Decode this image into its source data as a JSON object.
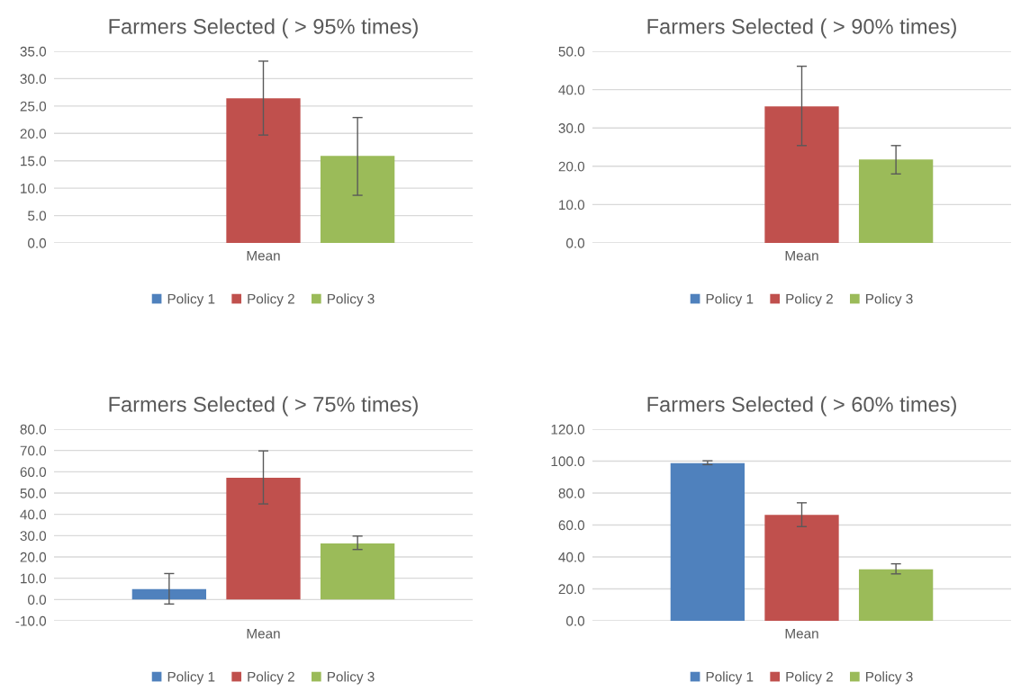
{
  "chart_data": [
    {
      "type": "bar",
      "title": "Farmers Selected ( > 95% times)",
      "categories": [
        "Mean"
      ],
      "ylim": [
        0,
        35
      ],
      "yticks": [
        {
          "value": 0,
          "label": "0.0"
        },
        {
          "value": 5,
          "label": "5.0"
        },
        {
          "value": 10,
          "label": "10.0"
        },
        {
          "value": 15,
          "label": "15.0"
        },
        {
          "value": 20,
          "label": "20.0"
        },
        {
          "value": 25,
          "label": "25.0"
        },
        {
          "value": 30,
          "label": "30.0"
        },
        {
          "value": 35,
          "label": "35.0"
        }
      ],
      "grid": "y",
      "legend": "bottom",
      "series": [
        {
          "name": "Policy 1",
          "color": "#4f81bd",
          "values": [
            null
          ],
          "errors": [
            null
          ]
        },
        {
          "name": "Policy 2",
          "color": "#c0504d",
          "values": [
            26.4
          ],
          "errors": [
            [
              19.7,
              33.2
            ]
          ]
        },
        {
          "name": "Policy 3",
          "color": "#9bbb59",
          "values": [
            15.9
          ],
          "errors": [
            [
              8.7,
              22.9
            ]
          ]
        }
      ]
    },
    {
      "type": "bar",
      "title": "Farmers Selected ( > 90% times)",
      "categories": [
        "Mean"
      ],
      "ylim": [
        0,
        50
      ],
      "yticks": [
        {
          "value": 0,
          "label": "0.0"
        },
        {
          "value": 10,
          "label": "10.0"
        },
        {
          "value": 20,
          "label": "20.0"
        },
        {
          "value": 30,
          "label": "30.0"
        },
        {
          "value": 40,
          "label": "40.0"
        },
        {
          "value": 50,
          "label": "50.0"
        }
      ],
      "grid": "y",
      "legend": "bottom",
      "series": [
        {
          "name": "Policy 1",
          "color": "#4f81bd",
          "values": [
            null
          ],
          "errors": [
            null
          ]
        },
        {
          "name": "Policy 2",
          "color": "#c0504d",
          "values": [
            35.6
          ],
          "errors": [
            [
              25.4,
              46.1
            ]
          ]
        },
        {
          "name": "Policy 3",
          "color": "#9bbb59",
          "values": [
            21.8
          ],
          "errors": [
            [
              18.0,
              25.4
            ]
          ]
        }
      ]
    },
    {
      "type": "bar",
      "title": "Farmers Selected ( > 75% times)",
      "categories": [
        "Mean"
      ],
      "ylim": [
        -10,
        80
      ],
      "yticks": [
        {
          "value": -10,
          "label": "-10.0"
        },
        {
          "value": 0,
          "label": "0.0"
        },
        {
          "value": 10,
          "label": "10.0"
        },
        {
          "value": 20,
          "label": "20.0"
        },
        {
          "value": 30,
          "label": "30.0"
        },
        {
          "value": 40,
          "label": "40.0"
        },
        {
          "value": 50,
          "label": "50.0"
        },
        {
          "value": 60,
          "label": "60.0"
        },
        {
          "value": 70,
          "label": "70.0"
        },
        {
          "value": 80,
          "label": "80.0"
        }
      ],
      "grid": "y",
      "legend": "bottom",
      "series": [
        {
          "name": "Policy 1",
          "color": "#4f81bd",
          "values": [
            4.9
          ],
          "errors": [
            [
              -2.1,
              12.2
            ]
          ]
        },
        {
          "name": "Policy 2",
          "color": "#c0504d",
          "values": [
            57.2
          ],
          "errors": [
            [
              44.9,
              69.8
            ]
          ]
        },
        {
          "name": "Policy 3",
          "color": "#9bbb59",
          "values": [
            26.3
          ],
          "errors": [
            [
              23.5,
              29.8
            ]
          ]
        }
      ]
    },
    {
      "type": "bar",
      "title": "Farmers Selected ( > 60% times)",
      "categories": [
        "Mean"
      ],
      "ylim": [
        0,
        120
      ],
      "yticks": [
        {
          "value": 0,
          "label": "0.0"
        },
        {
          "value": 20,
          "label": "20.0"
        },
        {
          "value": 40,
          "label": "40.0"
        },
        {
          "value": 60,
          "label": "60.0"
        },
        {
          "value": 80,
          "label": "80.0"
        },
        {
          "value": 100,
          "label": "100.0"
        },
        {
          "value": 120,
          "label": "120.0"
        }
      ],
      "grid": "y",
      "legend": "bottom",
      "series": [
        {
          "name": "Policy 1",
          "color": "#4f81bd",
          "values": [
            98.8
          ],
          "errors": [
            [
              97.8,
              100.2
            ]
          ]
        },
        {
          "name": "Policy 2",
          "color": "#c0504d",
          "values": [
            66.3
          ],
          "errors": [
            [
              59.0,
              73.9
            ]
          ]
        },
        {
          "name": "Policy 3",
          "color": "#9bbb59",
          "values": [
            32.2
          ],
          "errors": [
            [
              29.4,
              35.7
            ]
          ]
        }
      ]
    }
  ]
}
